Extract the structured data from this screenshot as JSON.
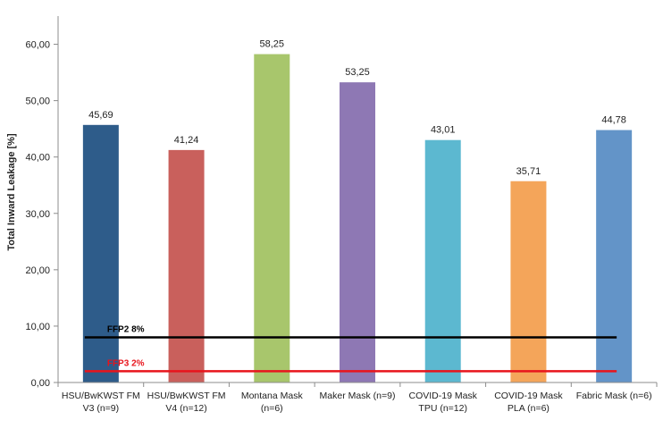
{
  "chart_data": {
    "type": "bar",
    "title": "",
    "xlabel": "",
    "ylabel": "Total Inward Leakage [%]",
    "ylim": [
      0,
      65
    ],
    "y_ticks": [
      "0,00",
      "10,00",
      "20,00",
      "30,00",
      "40,00",
      "50,00",
      "60,00"
    ],
    "y_tick_values": [
      0,
      10,
      20,
      30,
      40,
      50,
      60
    ],
    "grid": false,
    "categories": [
      [
        "HSU/BwKWST FM",
        "V3 (n=9)"
      ],
      [
        "HSU/BwKWST FM",
        "V4 (n=12)"
      ],
      [
        "Montana Mask",
        "(n=6)"
      ],
      [
        "Maker Mask (n=9)"
      ],
      [
        "COVID-19 Mask",
        "TPU (n=12)"
      ],
      [
        "COVID-19 Mask",
        "PLA (n=6)"
      ],
      [
        "Fabric Mask (n=6)"
      ]
    ],
    "values": [
      45.69,
      41.24,
      58.25,
      53.25,
      43.01,
      35.71,
      44.78
    ],
    "value_labels": [
      "45,69",
      "41,24",
      "58,25",
      "53,25",
      "43,01",
      "35,71",
      "44,78"
    ],
    "bar_colors": [
      "#2e5c8a",
      "#c9605c",
      "#a8c66c",
      "#8e78b4",
      "#5cb8d0",
      "#f4a55a",
      "#6394c8"
    ],
    "reference_lines": [
      {
        "label": "FFP2 8%",
        "value": 8,
        "color": "#000000"
      },
      {
        "label": "FFP3 2%",
        "value": 2,
        "color": "#e8141c"
      }
    ]
  }
}
